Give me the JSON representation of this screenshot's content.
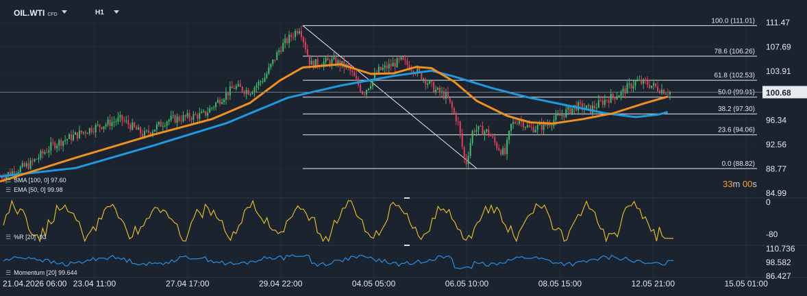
{
  "toolbar": {
    "symbol": "OIL.WTI",
    "symbol_tag": "CFD",
    "timeframe": "H1"
  },
  "countdown": {
    "minutes": "33",
    "m": "m",
    "seconds": "00",
    "s": "s"
  },
  "price_labels": [
    "111.47",
    "107.69",
    "103.91",
    "100.68",
    "96.34",
    "92.56",
    "88.77",
    "84.99"
  ],
  "current_price": "100.68",
  "time_labels": [
    "21.04.2026 06:00",
    "23.04 11:00",
    "27.04 17:00",
    "29.04 22:00",
    "04.05 05:00",
    "06.05 10:00",
    "08.05 15:00",
    "12.05 21:00",
    "15.05 01:00"
  ],
  "legend": {
    "sma": "SMA [100, 0] 97.60",
    "ema": "EMA [50, 0] 99.98"
  },
  "williams": {
    "label": "%R [20] -93",
    "ticks": [
      "0",
      "-80"
    ]
  },
  "momentum": {
    "label": "Momentum [20] 99.644",
    "ticks": [
      "110.736",
      "98.582",
      "86.427"
    ]
  },
  "colors": {
    "background": "#1a232e",
    "bull": "#3fbf6a",
    "bear": "#e0405a",
    "sma": "#1e9be0",
    "ema": "#f0901e",
    "williams": "#e8b822",
    "momentum": "#2b8fe6",
    "countdown": "#ff9f1c"
  },
  "chart_data": [
    {
      "type": "candlestick",
      "title": "OIL.WTI H1",
      "x_range": [
        "21.04.2026 06:00",
        "15.05 01:00"
      ],
      "ylim": [
        84.99,
        111.47
      ],
      "y_ticks": [
        111.47,
        107.69,
        103.91,
        96.34,
        92.56,
        88.77,
        84.99
      ],
      "last_price": 100.68,
      "fibonacci": {
        "high": 111.01,
        "low": 88.82,
        "levels": [
          {
            "label": "100.0 (111.01)",
            "pct": 100.0,
            "price": 111.01
          },
          {
            "label": "78.6 (106.26)",
            "pct": 78.6,
            "price": 106.26
          },
          {
            "label": "61.8 (102.53)",
            "pct": 61.8,
            "price": 102.53
          },
          {
            "label": "50.0 (99.91)",
            "pct": 50.0,
            "price": 99.91
          },
          {
            "label": "38.2 (97.30)",
            "pct": 38.2,
            "price": 97.3
          },
          {
            "label": "23.6 (94.06)",
            "pct": 23.6,
            "price": 94.06
          },
          {
            "label": "0.0 (88.82)",
            "pct": 0.0,
            "price": 88.82
          }
        ]
      },
      "trendline": {
        "from": {
          "t": 0.4,
          "price": 111.01
        },
        "to": {
          "t": 0.63,
          "price": 88.82
        }
      },
      "candle_path": [
        [
          0.0,
          87.5
        ],
        [
          0.04,
          89.5
        ],
        [
          0.07,
          92.5
        ],
        [
          0.12,
          95.0
        ],
        [
          0.16,
          96.5
        ],
        [
          0.19,
          94.0
        ],
        [
          0.22,
          96.3
        ],
        [
          0.27,
          97.2
        ],
        [
          0.29,
          99.5
        ],
        [
          0.31,
          101.5
        ],
        [
          0.33,
          100.8
        ],
        [
          0.35,
          103.0
        ],
        [
          0.37,
          107.5
        ],
        [
          0.396,
          110.8
        ],
        [
          0.41,
          105.0
        ],
        [
          0.44,
          105.5
        ],
        [
          0.46,
          104.5
        ],
        [
          0.48,
          100.5
        ],
        [
          0.5,
          104.0
        ],
        [
          0.53,
          105.5
        ],
        [
          0.55,
          104.0
        ],
        [
          0.575,
          101.0
        ],
        [
          0.59,
          100.0
        ],
        [
          0.605,
          96.0
        ],
        [
          0.615,
          89.2
        ],
        [
          0.625,
          95.0
        ],
        [
          0.645,
          94.5
        ],
        [
          0.655,
          92.5
        ],
        [
          0.667,
          91.0
        ],
        [
          0.675,
          95.5
        ],
        [
          0.685,
          96.5
        ],
        [
          0.7,
          95.0
        ],
        [
          0.72,
          95.5
        ],
        [
          0.74,
          97.0
        ],
        [
          0.76,
          98.5
        ],
        [
          0.78,
          98.0
        ],
        [
          0.8,
          99.5
        ],
        [
          0.82,
          100.5
        ],
        [
          0.84,
          102.3
        ],
        [
          0.855,
          102.0
        ],
        [
          0.875,
          101.0
        ],
        [
          0.885,
          100.68
        ]
      ],
      "sma_100": [
        [
          0.0,
          87.6
        ],
        [
          0.1,
          88.9
        ],
        [
          0.2,
          92.3
        ],
        [
          0.3,
          95.9
        ],
        [
          0.38,
          99.8
        ],
        [
          0.45,
          101.7
        ],
        [
          0.52,
          103.2
        ],
        [
          0.57,
          104.0
        ],
        [
          0.6,
          103.1
        ],
        [
          0.65,
          101.3
        ],
        [
          0.7,
          99.8
        ],
        [
          0.75,
          98.6
        ],
        [
          0.8,
          97.4
        ],
        [
          0.84,
          96.8
        ],
        [
          0.87,
          97.2
        ],
        [
          0.882,
          97.6
        ]
      ],
      "ema_50": [
        [
          0.0,
          86.8
        ],
        [
          0.1,
          90.5
        ],
        [
          0.2,
          94.0
        ],
        [
          0.28,
          96.5
        ],
        [
          0.33,
          99.0
        ],
        [
          0.37,
          102.5
        ],
        [
          0.4,
          104.5
        ],
        [
          0.45,
          105.0
        ],
        [
          0.49,
          103.5
        ],
        [
          0.52,
          103.6
        ],
        [
          0.55,
          104.6
        ],
        [
          0.57,
          104.4
        ],
        [
          0.6,
          102.3
        ],
        [
          0.63,
          99.3
        ],
        [
          0.67,
          97.0
        ],
        [
          0.7,
          96.0
        ],
        [
          0.73,
          95.8
        ],
        [
          0.77,
          96.5
        ],
        [
          0.81,
          97.4
        ],
        [
          0.85,
          98.9
        ],
        [
          0.882,
          99.98
        ]
      ]
    },
    {
      "type": "line",
      "title": "%R [20]",
      "ylim": [
        -100,
        0
      ],
      "y_ticks": [
        0,
        -80
      ],
      "last_value": -93
    },
    {
      "type": "line",
      "title": "Momentum [20]",
      "ylim": [
        86.427,
        110.736
      ],
      "y_ticks": [
        110.736,
        98.582,
        86.427
      ],
      "last_value": 99.644
    }
  ]
}
